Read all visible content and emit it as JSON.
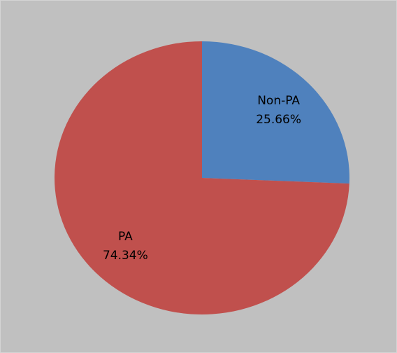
{
  "chart_data": {
    "type": "pie",
    "categories": [
      "Non-PA",
      "PA"
    ],
    "values": [
      25.66,
      74.34
    ],
    "value_labels": [
      "25.66%",
      "74.34%"
    ],
    "colors": [
      "#4f81bd",
      "#c0504d"
    ]
  }
}
